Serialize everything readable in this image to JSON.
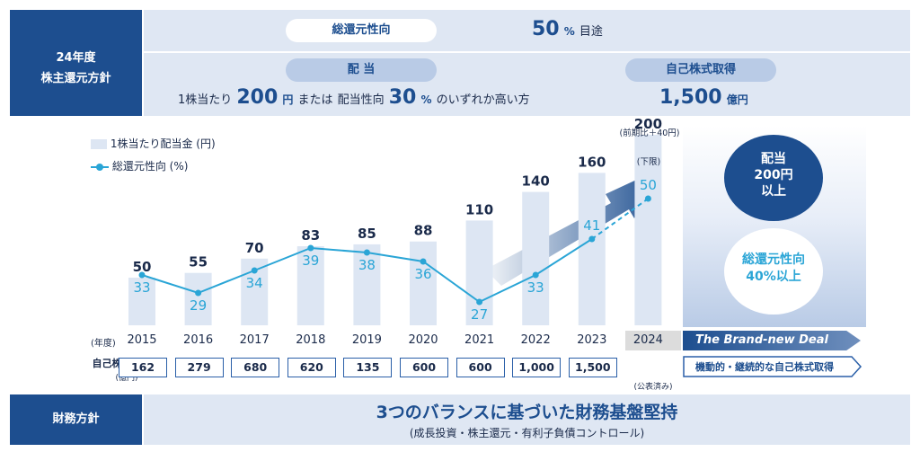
{
  "policy": {
    "section_label_line1": "24年度",
    "section_label_line2": "株主還元方針",
    "total_return_label": "総還元性向",
    "total_return_value": "50",
    "total_return_unit": "%",
    "total_return_suffix": "目途",
    "dividend_label": "配 当",
    "dividend_desc_1": "1株当たり",
    "dividend_amount": "200",
    "dividend_unit": "円",
    "dividend_desc_2": "または",
    "dividend_desc_3": "配当性向",
    "dividend_ratio": "30",
    "dividend_ratio_unit": "%",
    "dividend_desc_4": "のいずれか高い方",
    "buyback_label": "自己株式取得",
    "buyback_amount": "1,500",
    "buyback_unit": "億円"
  },
  "chart_data": {
    "type": "bar",
    "categories": [
      "2015",
      "2016",
      "2017",
      "2018",
      "2019",
      "2020",
      "2021",
      "2022",
      "2023",
      "2024"
    ],
    "series": [
      {
        "name": "1株当たり配当金 (円)",
        "type": "bar",
        "values": [
          50,
          55,
          70,
          83,
          85,
          88,
          110,
          140,
          160,
          200
        ]
      },
      {
        "name": "総還元性向 (%)",
        "type": "line",
        "values": [
          33,
          29,
          34,
          39,
          38,
          36,
          27,
          33,
          41,
          50
        ]
      }
    ],
    "x_axis_label": "(年度)",
    "annotation_2024_top": "(前期比＋40円)",
    "annotation_2024_bottom": "(下限)",
    "buyback_row_label": "自己株式取得額",
    "buyback_row_unit": "(億円)",
    "buyback_values": [
      "162",
      "279",
      "680",
      "620",
      "135",
      "600",
      "600",
      "1,000",
      "1,500"
    ],
    "buyback_note": "(公表済み)",
    "colors": {
      "bar": "#dde6f3",
      "line": "#2aa5d6",
      "label": "#1a2a4a",
      "line_label": "#2aa5d6"
    }
  },
  "brand": {
    "banner": "The Brand-new Deal",
    "circle1_line1": "配当",
    "circle1_line2": "200円",
    "circle1_line3": "以上",
    "circle2_line1": "総還元性向",
    "circle2_line2": "40%以上",
    "buyback_arrow_text": "機動的・継続的な自己株式取得"
  },
  "finance": {
    "section_label": "財務方針",
    "headline": "3つのバランスに基づいた財務基盤堅持",
    "sub": "(成長投資・株主還元・有利子負債コントロール)"
  }
}
